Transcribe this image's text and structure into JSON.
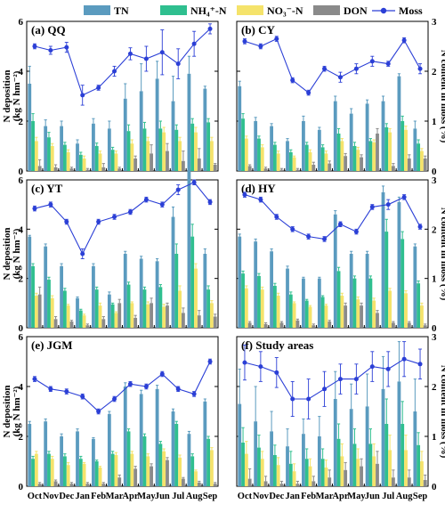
{
  "legend": {
    "items": [
      {
        "key": "TN",
        "label": "TN",
        "kind": "bar",
        "color": "#5b9bbf"
      },
      {
        "key": "NH4",
        "label": "NH₄⁺-N",
        "kind": "bar",
        "color": "#2fbf8f"
      },
      {
        "key": "NO3",
        "label": "NO₃⁻-N",
        "kind": "bar",
        "color": "#f5e36b"
      },
      {
        "key": "DON",
        "label": "DON",
        "kind": "bar",
        "color": "#8a8a8a"
      },
      {
        "key": "Moss",
        "label": "Moss",
        "kind": "line",
        "color": "#2b3fd6"
      }
    ]
  },
  "axes": {
    "left_label": "N deposition",
    "left_unit": "(kg N hm⁻²)",
    "right_label": "N content in moss (%)",
    "left_ylim": [
      0,
      6
    ],
    "left_ticks": [
      "0",
      "2",
      "4",
      "6"
    ],
    "right_ylim": [
      0,
      3
    ],
    "right_ticks": [
      "0",
      "1",
      "2",
      "3"
    ],
    "months": [
      "Oct",
      "Nov",
      "Dec",
      "Jan",
      "Feb",
      "Mar",
      "Apr",
      "May",
      "Jun",
      "Jul",
      "Aug",
      "Sep"
    ]
  },
  "chart_data": [
    {
      "type": "bar",
      "title": "(a) QQ",
      "series": [
        {
          "name": "TN",
          "values": [
            3.5,
            1.8,
            1.8,
            1.1,
            1.9,
            1.7,
            2.9,
            3.2,
            3.7,
            2.8,
            3.9,
            3.3
          ],
          "err": [
            0.7,
            0.25,
            0.2,
            0.15,
            0.2,
            0.3,
            0.6,
            1.1,
            0.7,
            1.0,
            0.7,
            0.1
          ]
        },
        {
          "name": "NH₄⁺-N",
          "values": [
            2.0,
            1.35,
            1.05,
            0.65,
            1.0,
            0.85,
            1.6,
            1.7,
            1.7,
            1.65,
            1.9,
            1.95
          ],
          "err": [
            0.3,
            0.2,
            0.1,
            0.1,
            0.12,
            0.1,
            0.25,
            0.25,
            0.3,
            0.2,
            0.2,
            0.15
          ]
        },
        {
          "name": "NO₃⁻-N",
          "values": [
            1.2,
            1.0,
            0.75,
            0.5,
            0.7,
            0.7,
            1.1,
            1.2,
            1.55,
            1.2,
            1.55,
            1.2
          ],
          "err": [
            0.15,
            0.1,
            0.1,
            0.1,
            0.1,
            0.1,
            0.15,
            0.15,
            0.2,
            0.15,
            0.2,
            0.15
          ]
        },
        {
          "name": "DON",
          "values": [
            0.2,
            0.15,
            0.1,
            0.05,
            0.15,
            0.1,
            0.5,
            0.7,
            0.8,
            0.4,
            0.5,
            0.25
          ],
          "err": [
            0.25,
            0.1,
            0.05,
            0.05,
            0.15,
            0.05,
            0.1,
            0.35,
            0.3,
            0.4,
            0.4,
            0.05
          ]
        },
        {
          "name": "Moss",
          "values": [
            2.5,
            2.42,
            2.48,
            1.52,
            1.67,
            2.0,
            2.35,
            2.25,
            2.38,
            2.15,
            2.55,
            2.85
          ],
          "err": [
            0.05,
            0.08,
            0.1,
            0.2,
            0.05,
            0.1,
            0.12,
            0.25,
            0.45,
            0.3,
            0.25,
            0.1
          ]
        }
      ]
    },
    {
      "type": "bar",
      "title": "(b) CY",
      "series": [
        {
          "name": "TN",
          "values": [
            3.4,
            2.0,
            1.8,
            1.2,
            2.0,
            1.65,
            2.8,
            2.3,
            2.7,
            2.8,
            3.8,
            1.7
          ],
          "err": [
            0.2,
            0.15,
            0.1,
            0.1,
            0.2,
            0.1,
            0.2,
            0.2,
            0.15,
            0.2,
            0.1,
            0.3
          ]
        },
        {
          "name": "NH₄⁺-N",
          "values": [
            2.1,
            1.3,
            1.05,
            0.75,
            1.05,
            0.95,
            1.5,
            1.0,
            1.2,
            1.75,
            2.0,
            1.1
          ],
          "err": [
            0.2,
            0.1,
            0.1,
            0.1,
            0.1,
            0.1,
            0.2,
            0.15,
            0.1,
            0.15,
            0.2,
            0.15
          ]
        },
        {
          "name": "NO₃⁻-N",
          "values": [
            1.3,
            0.95,
            0.7,
            0.55,
            0.75,
            0.7,
            1.2,
            0.85,
            1.15,
            1.55,
            1.65,
            0.8
          ],
          "err": [
            0.1,
            0.1,
            0.1,
            0.05,
            0.1,
            0.1,
            0.1,
            0.1,
            0.1,
            0.15,
            0.15,
            0.1
          ]
        },
        {
          "name": "DON",
          "values": [
            0.2,
            0.1,
            0.05,
            0.05,
            0.25,
            0.3,
            0.6,
            0.55,
            1.5,
            0.2,
            0.5,
            0.5
          ],
          "err": [
            0.05,
            0.05,
            0.05,
            0.05,
            0.1,
            0.1,
            0.1,
            0.1,
            0.2,
            0.1,
            0.15,
            0.1
          ]
        },
        {
          "name": "Moss",
          "values": [
            2.6,
            2.5,
            2.65,
            1.82,
            1.57,
            2.05,
            1.88,
            2.05,
            2.2,
            2.15,
            2.62,
            2.05
          ],
          "err": [
            0.05,
            0.05,
            0.05,
            0.05,
            0.05,
            0.05,
            0.1,
            0.1,
            0.1,
            0.05,
            0.05,
            0.1
          ]
        }
      ]
    },
    {
      "type": "bar",
      "title": "(c) YT",
      "series": [
        {
          "name": "TN",
          "values": [
            3.7,
            3.3,
            2.5,
            1.2,
            2.5,
            1.35,
            3.0,
            2.8,
            2.7,
            4.5,
            6.4,
            3.0
          ],
          "err": [
            0.05,
            0.1,
            0.1,
            0.05,
            0.1,
            0.1,
            0.1,
            0.1,
            0.1,
            0.4,
            0.3,
            0.2
          ]
        },
        {
          "name": "NH₄⁺-N",
          "values": [
            2.5,
            1.95,
            1.5,
            0.7,
            1.55,
            0.95,
            1.75,
            1.55,
            1.65,
            3.0,
            3.7,
            1.55
          ],
          "err": [
            0.1,
            0.1,
            0.1,
            0.05,
            0.1,
            0.05,
            0.1,
            0.1,
            0.1,
            0.4,
            0.5,
            0.15
          ]
        },
        {
          "name": "NO₃⁻-N",
          "values": [
            1.3,
            1.2,
            0.9,
            0.5,
            0.9,
            0.6,
            1.0,
            0.95,
            0.85,
            1.5,
            2.4,
            1.0
          ],
          "err": [
            0.1,
            0.1,
            0.05,
            0.05,
            0.1,
            0.05,
            0.05,
            0.1,
            0.1,
            0.2,
            0.2,
            0.1
          ]
        },
        {
          "name": "DON",
          "values": [
            1.35,
            0.35,
            0.25,
            0.1,
            0.35,
            1.0,
            0.4,
            1.0,
            0.9,
            0.6,
            0.5,
            0.45
          ],
          "err": [
            0.3,
            0.1,
            0.05,
            0.05,
            0.1,
            0.15,
            0.1,
            0.2,
            0.1,
            0.2,
            0.2,
            0.1
          ]
        },
        {
          "name": "Moss",
          "values": [
            2.42,
            2.5,
            2.15,
            1.5,
            2.15,
            2.25,
            2.35,
            2.6,
            2.5,
            2.8,
            2.95,
            2.55
          ],
          "err": [
            0.05,
            0.05,
            0.05,
            0.1,
            0.05,
            0.05,
            0.05,
            0.05,
            0.05,
            0.1,
            0.05,
            0.05
          ]
        }
      ]
    },
    {
      "type": "bar",
      "title": "(d) HY",
      "series": [
        {
          "name": "TN",
          "values": [
            3.7,
            3.5,
            3.1,
            2.4,
            2.0,
            2.0,
            4.6,
            3.0,
            3.0,
            5.5,
            5.1,
            3.3
          ],
          "err": [
            0.1,
            0.1,
            0.1,
            0.1,
            0.05,
            0.05,
            0.15,
            0.1,
            0.1,
            0.25,
            0.2,
            0.1
          ]
        },
        {
          "name": "NH₄⁺-N",
          "values": [
            2.2,
            2.1,
            1.7,
            1.35,
            1.1,
            1.25,
            2.3,
            2.0,
            2.0,
            3.9,
            3.6,
            1.8
          ],
          "err": [
            0.1,
            0.1,
            0.1,
            0.1,
            0.05,
            0.05,
            0.15,
            0.1,
            0.1,
            0.5,
            0.3,
            0.1
          ]
        },
        {
          "name": "NO₃⁻-N",
          "values": [
            1.6,
            1.55,
            1.3,
            1.0,
            0.85,
            0.9,
            1.3,
            1.15,
            1.1,
            1.5,
            1.4,
            0.9
          ],
          "err": [
            0.1,
            0.1,
            0.1,
            0.05,
            0.05,
            0.05,
            0.1,
            0.1,
            0.1,
            0.1,
            0.1,
            0.1
          ]
        },
        {
          "name": "DON",
          "values": [
            0.2,
            0.15,
            0.2,
            0.3,
            0.1,
            0.25,
            0.9,
            0.9,
            0.6,
            0.2,
            0.2,
            0.1
          ],
          "err": [
            0.05,
            0.05,
            0.05,
            0.05,
            0.05,
            0.05,
            0.1,
            0.1,
            0.1,
            0.05,
            0.05,
            0.05
          ]
        },
        {
          "name": "Moss",
          "values": [
            2.7,
            2.6,
            2.25,
            2.0,
            1.85,
            1.8,
            2.1,
            1.95,
            2.45,
            2.5,
            2.65,
            2.05
          ],
          "err": [
            0.05,
            0.05,
            0.05,
            0.05,
            0.05,
            0.05,
            0.05,
            0.05,
            0.05,
            0.1,
            0.05,
            0.05
          ]
        }
      ]
    },
    {
      "type": "bar",
      "title": "(e) JGM",
      "series": [
        {
          "name": "TN",
          "values": [
            2.5,
            2.6,
            2.0,
            2.2,
            1.9,
            2.9,
            4.0,
            3.7,
            3.9,
            3.0,
            2.1,
            3.4
          ],
          "err": [
            0.1,
            0.1,
            0.1,
            0.1,
            0.05,
            0.1,
            0.15,
            0.15,
            0.15,
            0.1,
            0.1,
            0.1
          ]
        },
        {
          "name": "NH₄⁺-N",
          "values": [
            1.1,
            1.3,
            1.2,
            1.1,
            1.0,
            1.3,
            2.2,
            2.0,
            1.7,
            2.5,
            1.2,
            1.9
          ],
          "err": [
            0.1,
            0.1,
            0.1,
            0.1,
            0.05,
            0.1,
            0.1,
            0.1,
            0.1,
            0.1,
            0.1,
            0.1
          ]
        },
        {
          "name": "NO₃⁻-N",
          "values": [
            1.3,
            1.1,
            0.85,
            0.9,
            0.75,
            1.25,
            1.3,
            1.2,
            1.4,
            1.15,
            0.6,
            1.45
          ],
          "err": [
            0.1,
            0.1,
            0.1,
            0.05,
            0.05,
            0.1,
            0.1,
            0.1,
            0.1,
            0.1,
            0.05,
            0.1
          ]
        },
        {
          "name": "DON",
          "values": [
            0.1,
            0.2,
            0.1,
            0.1,
            0.1,
            0.35,
            0.7,
            0.8,
            1.05,
            0.3,
            0.15,
            0.1
          ],
          "err": [
            0.05,
            0.05,
            0.05,
            0.05,
            0.05,
            0.1,
            0.1,
            0.1,
            0.1,
            0.05,
            0.05,
            0.05
          ]
        },
        {
          "name": "Moss",
          "values": [
            2.15,
            1.95,
            1.9,
            1.8,
            1.5,
            1.75,
            2.05,
            2.0,
            2.25,
            1.95,
            1.85,
            2.5
          ],
          "err": [
            0.05,
            0.05,
            0.05,
            0.05,
            0.05,
            0.05,
            0.05,
            0.05,
            0.05,
            0.05,
            0.05,
            0.05
          ]
        }
      ]
    },
    {
      "type": "bar",
      "title": "(f) Study areas",
      "series": [
        {
          "name": "TN",
          "values": [
            3.3,
            2.6,
            2.2,
            1.6,
            2.1,
            2.0,
            3.5,
            3.1,
            3.2,
            3.9,
            4.2,
            3.0
          ],
          "err": [
            1.4,
            1.4,
            0.8,
            0.7,
            0.6,
            0.8,
            1.1,
            1.0,
            1.3,
            1.3,
            1.6,
            1.3
          ]
        },
        {
          "name": "NH₄⁺-N",
          "values": [
            1.75,
            1.55,
            1.25,
            0.9,
            1.1,
            1.1,
            1.9,
            1.7,
            1.7,
            2.5,
            2.5,
            1.65
          ],
          "err": [
            0.6,
            0.5,
            0.4,
            0.5,
            0.4,
            0.4,
            0.6,
            0.6,
            0.6,
            1.0,
            0.9,
            0.5
          ]
        },
        {
          "name": "NO₃⁻-N",
          "values": [
            1.3,
            1.1,
            0.85,
            0.6,
            0.8,
            0.75,
            1.2,
            1.1,
            1.2,
            1.45,
            1.45,
            1.0
          ],
          "err": [
            0.5,
            0.3,
            0.3,
            0.3,
            0.3,
            0.3,
            0.5,
            0.4,
            0.5,
            0.6,
            0.6,
            0.4
          ]
        },
        {
          "name": "DON",
          "values": [
            0.3,
            0.2,
            0.1,
            0.1,
            0.2,
            0.35,
            0.65,
            0.8,
            0.9,
            0.35,
            0.35,
            0.25
          ],
          "err": [
            0.4,
            0.2,
            0.1,
            0.1,
            0.2,
            0.3,
            0.3,
            0.3,
            0.5,
            0.3,
            0.3,
            0.2
          ]
        },
        {
          "name": "Moss",
          "values": [
            2.48,
            2.4,
            2.28,
            1.75,
            1.75,
            1.95,
            2.15,
            2.15,
            2.4,
            2.35,
            2.55,
            2.45
          ],
          "err": [
            0.35,
            0.3,
            0.3,
            0.35,
            0.4,
            0.35,
            0.3,
            0.3,
            0.3,
            0.35,
            0.35,
            0.3
          ]
        }
      ]
    }
  ]
}
